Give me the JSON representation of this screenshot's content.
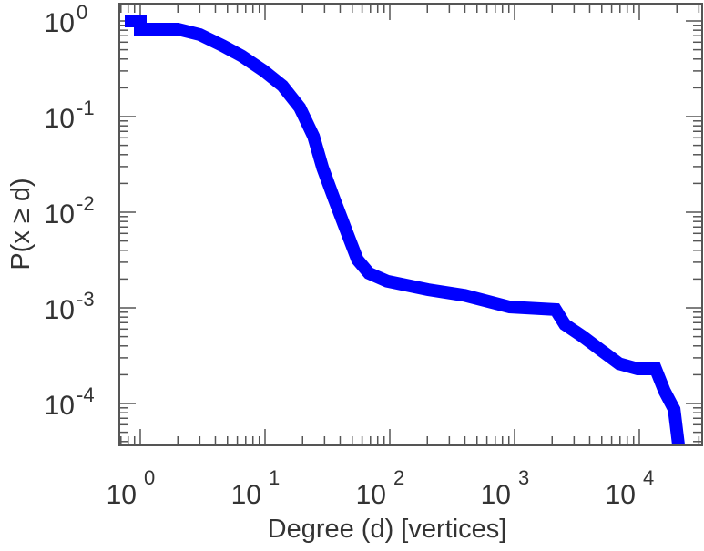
{
  "chart_data": {
    "type": "line",
    "title": "",
    "xlabel": "Degree (d) [vertices]",
    "ylabel": "P(x ≥ d)",
    "xscale": "log",
    "yscale": "log",
    "xlim": [
      0.68,
      32000
    ],
    "ylim": [
      3.7e-05,
      1.5
    ],
    "x_ticks": [
      {
        "base": "10",
        "exp": "0",
        "value": 1
      },
      {
        "base": "10",
        "exp": "1",
        "value": 10
      },
      {
        "base": "10",
        "exp": "2",
        "value": 100
      },
      {
        "base": "10",
        "exp": "3",
        "value": 1000
      },
      {
        "base": "10",
        "exp": "4",
        "value": 10000
      }
    ],
    "y_ticks": [
      {
        "base": "10",
        "exp": "0",
        "value": 1
      },
      {
        "base": "10",
        "exp": "-1",
        "value": 0.1
      },
      {
        "base": "10",
        "exp": "-2",
        "value": 0.01
      },
      {
        "base": "10",
        "exp": "-3",
        "value": 0.001
      },
      {
        "base": "10",
        "exp": "-4",
        "value": 0.0001
      }
    ],
    "grid": false,
    "series": [
      {
        "name": "CCDF",
        "color": "#0000ff",
        "x": [
          0.68,
          1.0,
          1.0,
          2.0,
          3.0,
          4.6,
          6.5,
          9.8,
          13.8,
          19,
          24.5,
          29,
          36,
          45,
          55,
          68,
          95,
          202,
          398,
          915,
          2130,
          2530,
          3530,
          4940,
          6900,
          9700,
          13500,
          15900,
          19000,
          20600
        ],
        "y": [
          1,
          1,
          0.82,
          0.82,
          0.72,
          0.55,
          0.43,
          0.3,
          0.21,
          0.124,
          0.062,
          0.029,
          0.0135,
          0.0063,
          0.0032,
          0.0023,
          0.0019,
          0.00155,
          0.00135,
          0.00102,
          0.00096,
          0.00067,
          0.0005,
          0.00036,
          0.00026,
          0.00023,
          0.00023,
          0.000135,
          8.7e-05,
          3.7e-05
        ]
      }
    ]
  }
}
